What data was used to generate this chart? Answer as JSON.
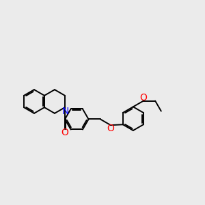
{
  "bg_color": "#ebebeb",
  "bond_color": "#000000",
  "N_color": "#0000ff",
  "O_color": "#ff0000",
  "bond_width": 1.4,
  "dbo": 0.06,
  "font_size": 10,
  "fig_size": [
    3.0,
    3.0
  ],
  "dpi": 100,
  "xlim": [
    0,
    10
  ],
  "ylim": [
    2,
    8
  ]
}
